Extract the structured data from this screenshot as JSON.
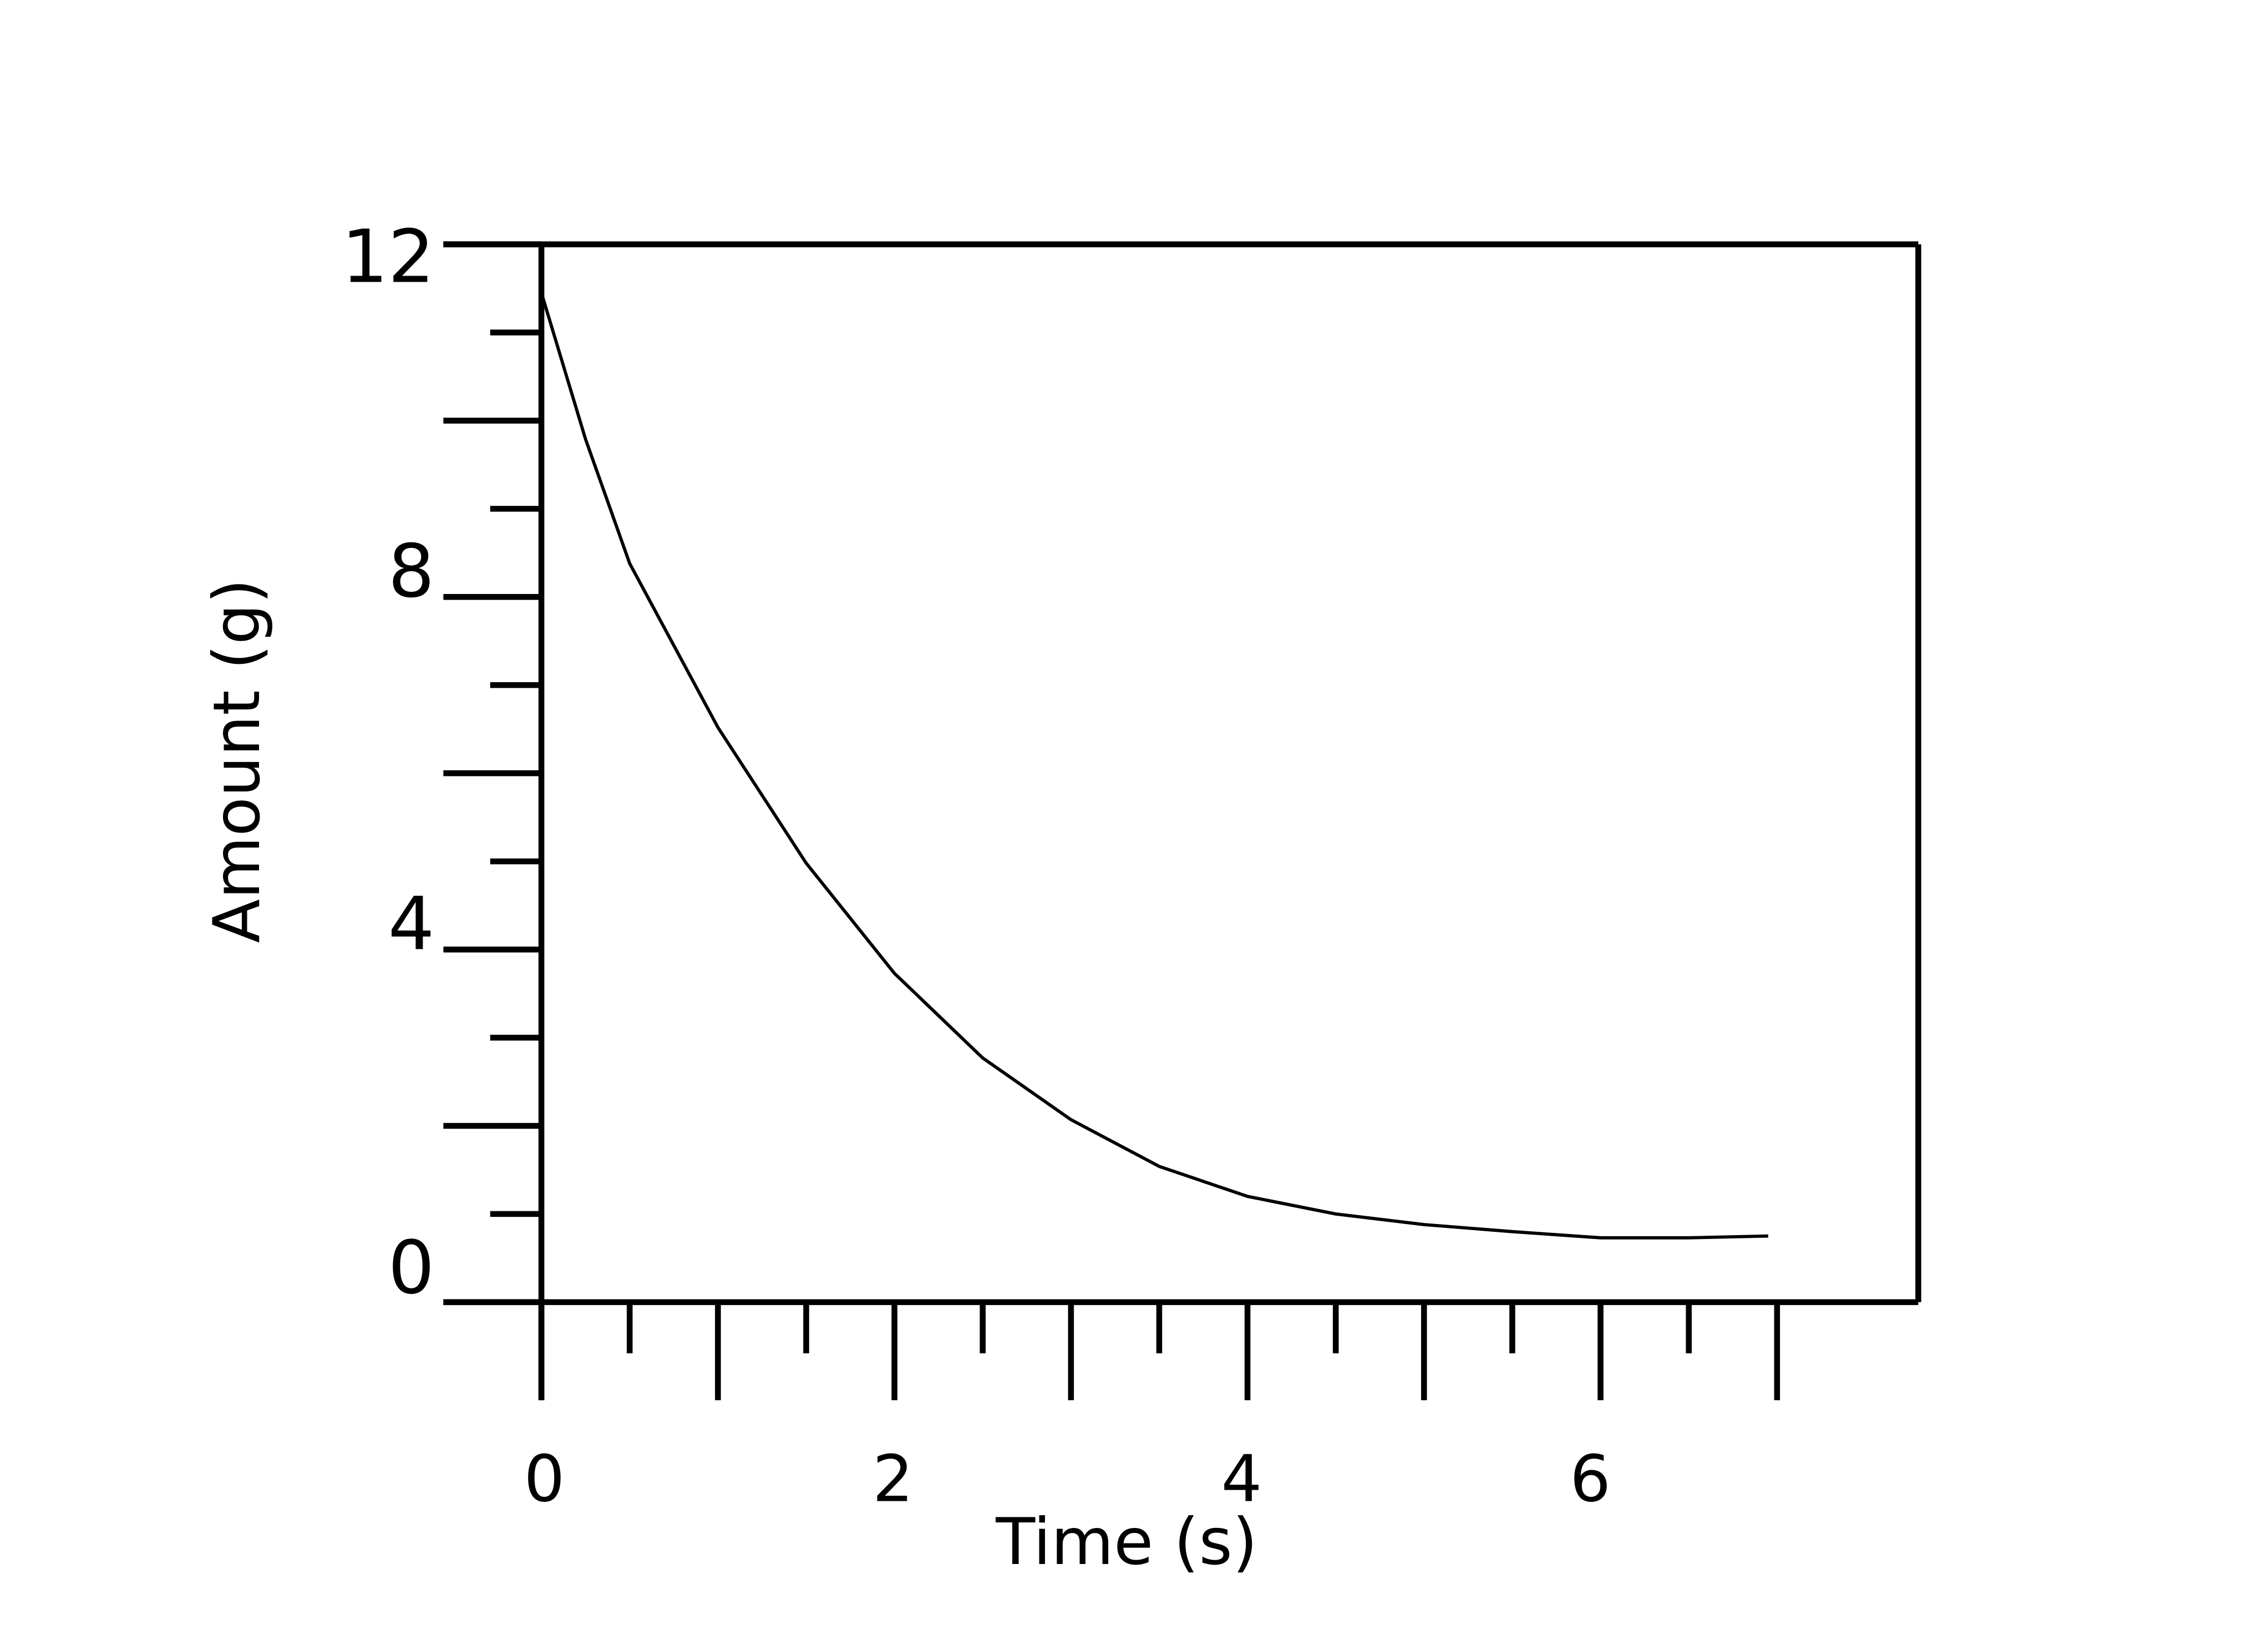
{
  "chart_data": {
    "type": "line",
    "xlabel": "Time (s)",
    "ylabel": "Amount (g)",
    "x": [
      0,
      0.25,
      0.5,
      1,
      1.5,
      2,
      2.5,
      3,
      3.5,
      4,
      4.5,
      5,
      5.5,
      6,
      6.5,
      6.95
    ],
    "values": [
      11.45,
      9.79,
      8.38,
      6.52,
      4.98,
      3.73,
      2.77,
      2.07,
      1.54,
      1.2,
      1.0,
      0.88,
      0.8,
      0.73,
      0.73,
      0.75
    ],
    "color": "#000000",
    "xlim": [
      0,
      7.8
    ],
    "ylim": [
      0,
      12
    ],
    "xticks": [
      0,
      2,
      4,
      6
    ],
    "xticks_unlabeled": [
      1,
      3,
      5,
      7
    ],
    "xticks_minor": [
      0.5,
      1.5,
      2.5,
      3.5,
      4.5,
      5.5,
      6.5
    ],
    "yticks": [
      0,
      4,
      8,
      12
    ],
    "yticks_unlabeled": [
      2,
      6,
      10
    ],
    "yticks_minor": [
      1,
      3,
      5,
      7,
      9,
      11
    ]
  }
}
